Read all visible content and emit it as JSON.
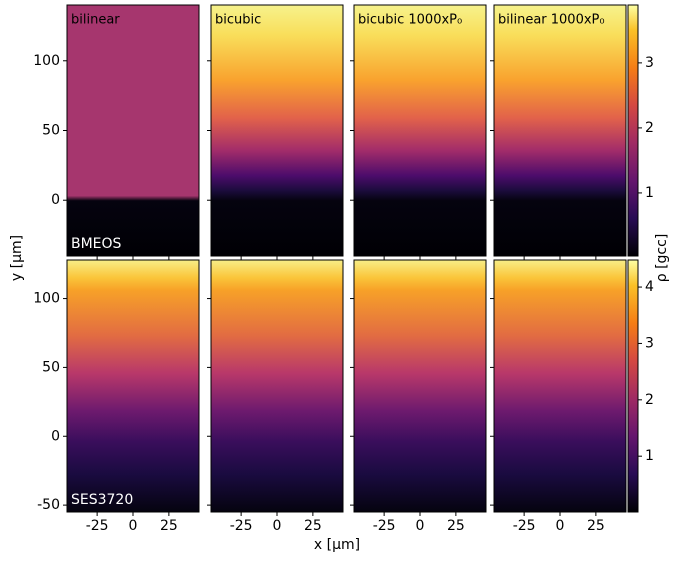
{
  "chart_data": {
    "type": "heatmap",
    "xlabel": "x [μm]",
    "ylabel": "y [μm]",
    "colorbar_label": "ρ [gcc]",
    "columns": [
      "bilinear",
      "bicubic",
      "bicubic 1000xP₀",
      "bilinear 1000xP₀"
    ],
    "xlim": [
      -46,
      46
    ],
    "xticks": [
      -25,
      0,
      25
    ],
    "rows": [
      {
        "label": "BMEOS",
        "ylim": [
          -40,
          140
        ],
        "yticks": [
          0,
          50,
          100
        ],
        "clim": [
          0.03,
          3.89
        ],
        "cticks": [
          1,
          2,
          3
        ]
      },
      {
        "label": "SES3720",
        "ylim": [
          -55,
          128
        ],
        "yticks": [
          -50,
          0,
          50,
          100
        ],
        "clim": [
          0.01,
          4.48
        ],
        "cticks": [
          1,
          2,
          3,
          4
        ]
      }
    ]
  }
}
